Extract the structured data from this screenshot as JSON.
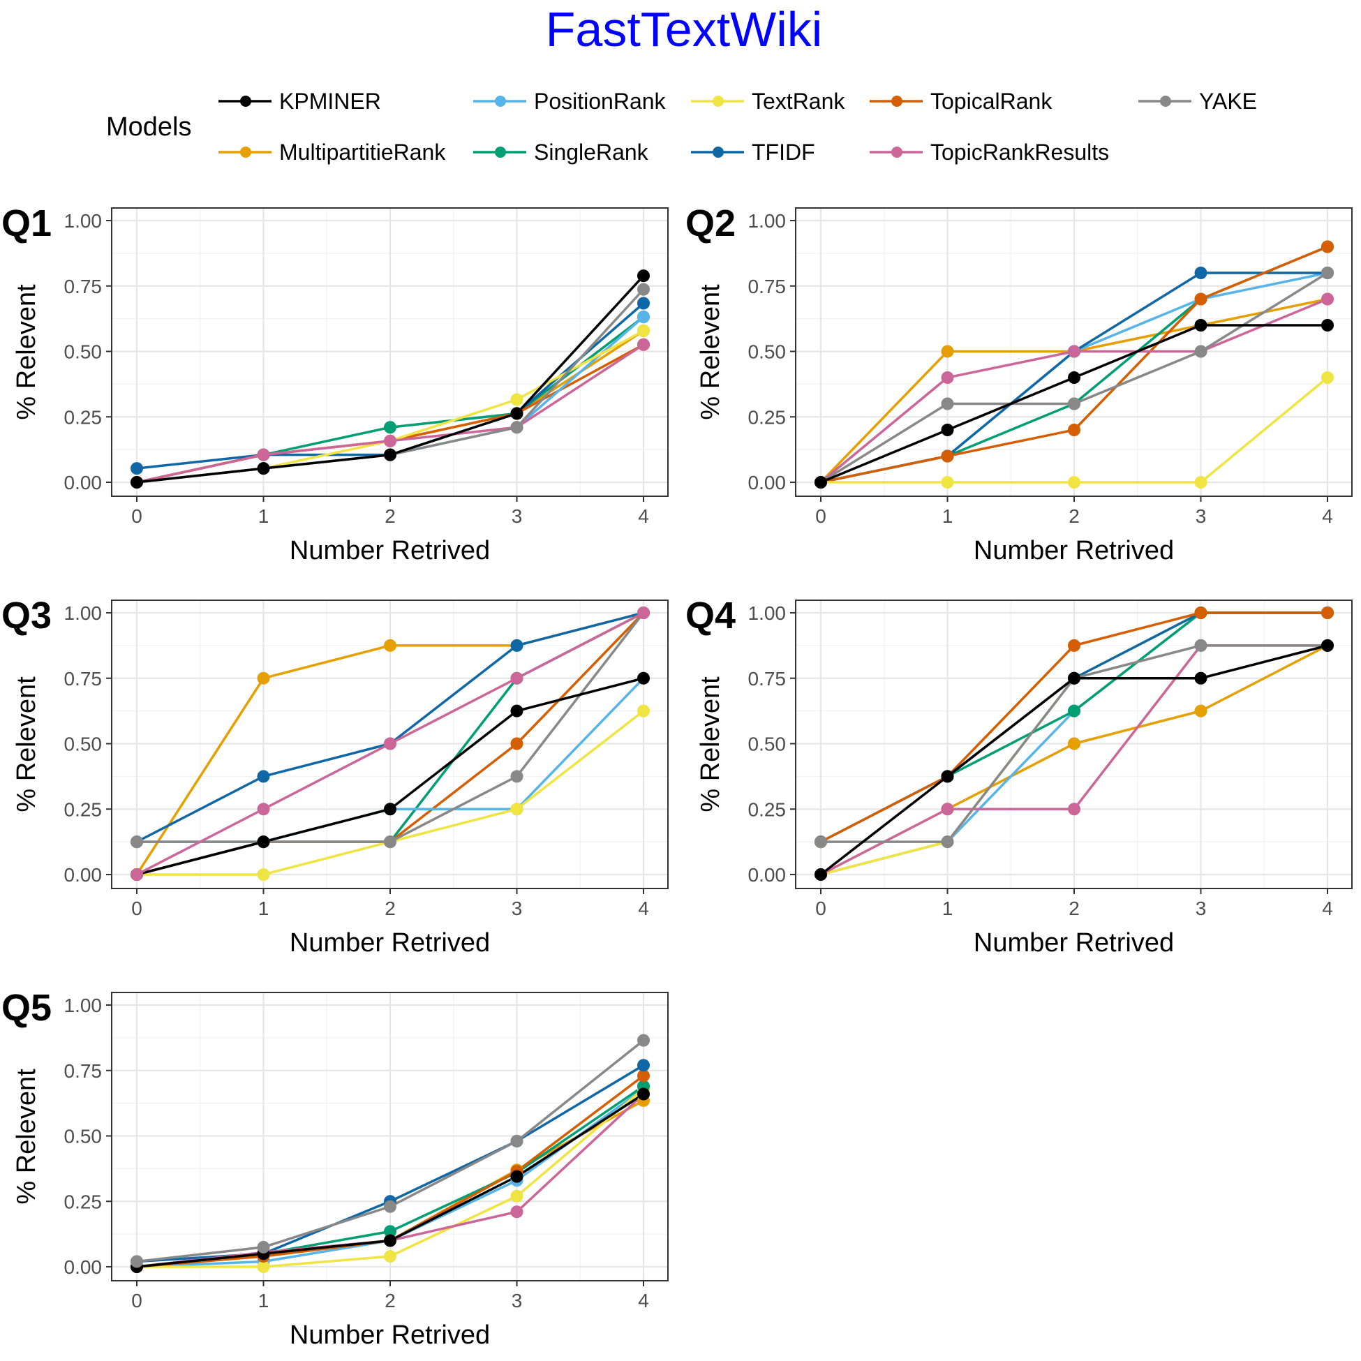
{
  "title": "FastTextWiki",
  "legend": {
    "title": "Models",
    "items": [
      {
        "name": "KPMINER",
        "color": "#000000"
      },
      {
        "name": "PositionRank",
        "color": "#56B4E9"
      },
      {
        "name": "TextRank",
        "color": "#F0E442"
      },
      {
        "name": "TopicalRank",
        "color": "#D55E00"
      },
      {
        "name": "YAKE",
        "color": "#888888"
      },
      {
        "name": "MultipartitieRank",
        "color": "#E69F00"
      },
      {
        "name": "SingleRank",
        "color": "#009E73"
      },
      {
        "name": "TFIDF",
        "color": "#0F67A6"
      },
      {
        "name": "TopicRankResults",
        "color": "#CC6699"
      }
    ]
  },
  "chart_data": [
    {
      "type": "line",
      "panel": "Q1",
      "xlabel": "Number Retrived",
      "ylabel": "% Relevent",
      "x": [
        0,
        1,
        2,
        3,
        4
      ],
      "xticks": [
        "0",
        "1",
        "2",
        "3",
        "4"
      ],
      "yticks": [
        "0.00",
        "0.25",
        "0.50",
        "0.75",
        "1.00"
      ],
      "ylim": [
        0,
        1
      ],
      "grid": true,
      "series": [
        {
          "name": "MultipartitieRank",
          "values": [
            0,
            0.105,
            0.158,
            0.263,
            0.579
          ]
        },
        {
          "name": "SingleRank",
          "values": [
            0,
            0.105,
            0.21,
            0.263,
            0.632
          ]
        },
        {
          "name": "TFIDF",
          "values": [
            0.053,
            0.105,
            0.105,
            0.263,
            0.684
          ]
        },
        {
          "name": "TopicalRank",
          "values": [
            0,
            0.105,
            0.158,
            0.263,
            0.526
          ]
        },
        {
          "name": "PositionRank",
          "values": [
            0,
            0.053,
            0.105,
            0.21,
            0.632
          ]
        },
        {
          "name": "TextRank",
          "values": [
            0,
            0.053,
            0.158,
            0.316,
            0.579
          ]
        },
        {
          "name": "TopicRankResults",
          "values": [
            0,
            0.105,
            0.158,
            0.21,
            0.526
          ]
        },
        {
          "name": "YAKE",
          "values": [
            0,
            0.053,
            0.105,
            0.21,
            0.737
          ]
        },
        {
          "name": "KPMINER",
          "values": [
            0,
            0.053,
            0.105,
            0.263,
            0.789
          ]
        }
      ]
    },
    {
      "type": "line",
      "panel": "Q2",
      "xlabel": "Number Retrived",
      "ylabel": "% Relevent",
      "x": [
        0,
        1,
        2,
        3,
        4
      ],
      "xticks": [
        "0",
        "1",
        "2",
        "3",
        "4"
      ],
      "yticks": [
        "0.00",
        "0.25",
        "0.50",
        "0.75",
        "1.00"
      ],
      "ylim": [
        0,
        1
      ],
      "grid": true,
      "series": [
        {
          "name": "MultipartitieRank",
          "values": [
            0,
            0.5,
            0.5,
            0.6,
            0.7
          ]
        },
        {
          "name": "SingleRank",
          "values": [
            0,
            0.1,
            0.3,
            0.7,
            0.9
          ]
        },
        {
          "name": "PositionRank",
          "values": [
            0,
            0.1,
            0.5,
            0.7,
            0.8
          ]
        },
        {
          "name": "TFIDF",
          "values": [
            0,
            0.1,
            0.5,
            0.8,
            0.8
          ]
        },
        {
          "name": "TopicalRank",
          "values": [
            0,
            0.1,
            0.2,
            0.7,
            0.9
          ]
        },
        {
          "name": "TextRank",
          "values": [
            0,
            0,
            0,
            0,
            0.4
          ]
        },
        {
          "name": "TopicRankResults",
          "values": [
            0,
            0.4,
            0.5,
            0.5,
            0.7
          ]
        },
        {
          "name": "YAKE",
          "values": [
            0,
            0.3,
            0.3,
            0.5,
            0.8
          ]
        },
        {
          "name": "KPMINER",
          "values": [
            0,
            0.2,
            0.4,
            0.6,
            0.6
          ]
        }
      ]
    },
    {
      "type": "line",
      "panel": "Q3",
      "xlabel": "Number Retrived",
      "ylabel": "% Relevent",
      "x": [
        0,
        1,
        2,
        3,
        4
      ],
      "xticks": [
        "0",
        "1",
        "2",
        "3",
        "4"
      ],
      "yticks": [
        "0.00",
        "0.25",
        "0.50",
        "0.75",
        "1.00"
      ],
      "ylim": [
        0,
        1
      ],
      "grid": true,
      "series": [
        {
          "name": "MultipartitieRank",
          "values": [
            0,
            0.75,
            0.875,
            0.875,
            1
          ]
        },
        {
          "name": "TFIDF",
          "values": [
            0.125,
            0.375,
            0.5,
            0.875,
            1
          ]
        },
        {
          "name": "SingleRank",
          "values": [
            0,
            0.125,
            0.125,
            0.75,
            1
          ]
        },
        {
          "name": "TopicalRank",
          "values": [
            0,
            0.125,
            0.125,
            0.5,
            1
          ]
        },
        {
          "name": "PositionRank",
          "values": [
            0.125,
            0.125,
            0.25,
            0.25,
            0.75
          ]
        },
        {
          "name": "TextRank",
          "values": [
            0,
            0,
            0.125,
            0.25,
            0.625
          ]
        },
        {
          "name": "YAKE",
          "values": [
            0.125,
            0.125,
            0.125,
            0.375,
            1
          ]
        },
        {
          "name": "KPMINER",
          "values": [
            0,
            0.125,
            0.25,
            0.625,
            0.75
          ]
        },
        {
          "name": "TopicRankResults",
          "values": [
            0,
            0.25,
            0.5,
            0.75,
            1
          ]
        }
      ]
    },
    {
      "type": "line",
      "panel": "Q4",
      "xlabel": "Number Retrived",
      "ylabel": "% Relevent",
      "x": [
        0,
        1,
        2,
        3,
        4
      ],
      "xticks": [
        "0",
        "1",
        "2",
        "3",
        "4"
      ],
      "yticks": [
        "0.00",
        "0.25",
        "0.50",
        "0.75",
        "1.00"
      ],
      "ylim": [
        0,
        1
      ],
      "grid": true,
      "series": [
        {
          "name": "MultipartitieRank",
          "values": [
            0,
            0.25,
            0.5,
            0.625,
            0.875
          ]
        },
        {
          "name": "PositionRank",
          "values": [
            0,
            0.125,
            0.625,
            1,
            1
          ]
        },
        {
          "name": "TextRank",
          "values": [
            0,
            0.125,
            0.75,
            1,
            1
          ]
        },
        {
          "name": "SingleRank",
          "values": [
            0.125,
            0.375,
            0.625,
            1,
            1
          ]
        },
        {
          "name": "TFIDF",
          "values": [
            0.125,
            0.375,
            0.75,
            1,
            1
          ]
        },
        {
          "name": "TopicalRank",
          "values": [
            0.125,
            0.375,
            0.875,
            1,
            1
          ]
        },
        {
          "name": "TopicRankResults",
          "values": [
            0,
            0.25,
            0.25,
            0.875,
            0.875
          ]
        },
        {
          "name": "YAKE",
          "values": [
            0.125,
            0.125,
            0.75,
            0.875,
            0.875
          ]
        },
        {
          "name": "KPMINER",
          "values": [
            0,
            0.375,
            0.75,
            0.75,
            0.875
          ]
        }
      ]
    },
    {
      "type": "line",
      "panel": "Q5",
      "xlabel": "Number Retrived",
      "ylabel": "% Relevent",
      "x": [
        0,
        1,
        2,
        3,
        4
      ],
      "xticks": [
        "0",
        "1",
        "2",
        "3",
        "4"
      ],
      "yticks": [
        "0.00",
        "0.25",
        "0.50",
        "0.75",
        "1.00"
      ],
      "ylim": [
        0,
        1
      ],
      "grid": true,
      "series": [
        {
          "name": "MultipartitieRank",
          "values": [
            0,
            0.05,
            0.1,
            0.37,
            0.635
          ]
        },
        {
          "name": "PositionRank",
          "values": [
            0,
            0.02,
            0.1,
            0.33,
            0.68
          ]
        },
        {
          "name": "TextRank",
          "values": [
            0,
            0,
            0.04,
            0.27,
            0.68
          ]
        },
        {
          "name": "SingleRank",
          "values": [
            0,
            0.05,
            0.135,
            0.36,
            0.69
          ]
        },
        {
          "name": "TopicalRank",
          "values": [
            0,
            0.04,
            0.1,
            0.365,
            0.73
          ]
        },
        {
          "name": "TFIDF",
          "values": [
            0.02,
            0.05,
            0.25,
            0.48,
            0.77
          ]
        },
        {
          "name": "TopicRankResults",
          "values": [
            0,
            0.055,
            0.1,
            0.21,
            0.66
          ]
        },
        {
          "name": "KPMINER",
          "values": [
            0,
            0.05,
            0.1,
            0.345,
            0.66
          ]
        },
        {
          "name": "YAKE",
          "values": [
            0.02,
            0.075,
            0.23,
            0.48,
            0.865
          ]
        }
      ]
    }
  ]
}
